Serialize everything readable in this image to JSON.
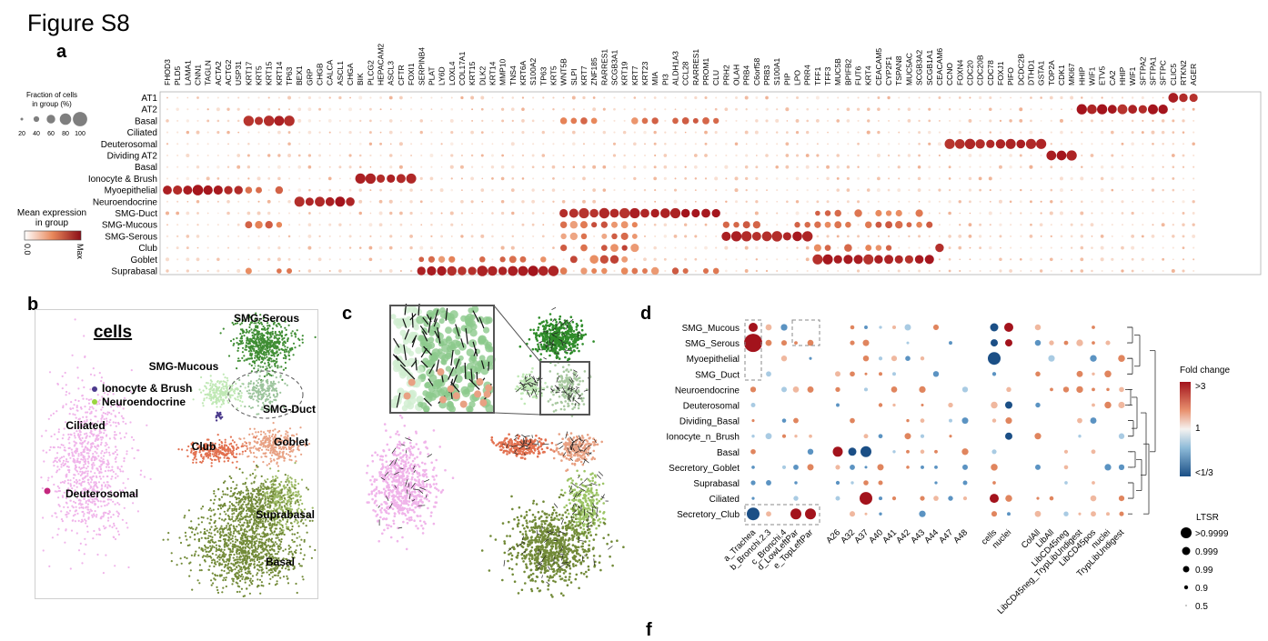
{
  "figure_title": "Figure S8",
  "panel_labels": {
    "a": "a",
    "b": "b",
    "c": "c",
    "d": "d",
    "f": "f"
  },
  "panel_a": {
    "genes": [
      "FHOD3",
      "PLD5",
      "LAMA1",
      "CNN1",
      "TAGLN",
      "ACTA2",
      "ACTG2",
      "USP31",
      "KRT17",
      "KRT5",
      "KRT15",
      "KRT14",
      "TP63",
      "BEX1",
      "GRP",
      "CHGB",
      "CALCA",
      "ASCL1",
      "CHGA",
      "BIK",
      "PLCG2",
      "HEPACAM2",
      "ASCL3",
      "CFTR",
      "FOXI1",
      "SERPINB4",
      "PLAT",
      "LY6D",
      "LOXL4",
      "COL17A1",
      "KRT15",
      "DLK2",
      "KRT14",
      "MMP10",
      "TNS4",
      "KRT6A",
      "S100A2",
      "TP63",
      "KRT5",
      "WNT5B",
      "SLPI",
      "KRT7",
      "ZNF185",
      "RARRES1",
      "SCGB3A1",
      "KRT19",
      "KRT7",
      "KRT23",
      "MIA",
      "PI3",
      "ALDH1A3",
      "CCL28",
      "RARRES1",
      "PROM1",
      "CLU",
      "PRH2",
      "OLAH",
      "PRB4",
      "C6orf58",
      "PRB3",
      "S100A1",
      "PIP",
      "LPO",
      "PRR4",
      "TFF1",
      "TFF3",
      "MUC5B",
      "BPIFB2",
      "FUT6",
      "KRT4",
      "CEACAM5",
      "CYP2F1",
      "TSPAN8",
      "MUC5AC",
      "SCGB3A2",
      "SCGB1A1",
      "CEACAM6",
      "CCNO",
      "FOXN4",
      "CDC20",
      "CDC20B",
      "CDC78",
      "FOXJ1",
      "PIFO",
      "DCDC2B",
      "DTHD1",
      "GSTA1",
      "TOP2A",
      "CDK1",
      "MKI67",
      "HHIP",
      "WIF1",
      "ETV5",
      "CA2",
      "HHIP",
      "WIF1",
      "SFTPA2",
      "SFTPA1",
      "SFTPC",
      "CLIC5",
      "RTKN2",
      "AGER"
    ],
    "celltypes": [
      "AT1",
      "AT2",
      "Basal",
      "Ciliated",
      "Deuterosomal",
      "Dividing AT2",
      "Basal",
      "Ionocyte & Brush",
      "Myoepithelial",
      "Neuroendocrine",
      "SMG-Duct",
      "SMG-Mucous",
      "SMG-Serous",
      "Club",
      "Goblet",
      "Suprabasal"
    ],
    "fraction_legend_title": [
      "Fraction of cells",
      "in group (%)"
    ],
    "fraction_ticks": [
      "20",
      "40",
      "60",
      "80",
      "100"
    ],
    "mean_expr_title": [
      "Mean expression",
      "in group"
    ],
    "colorbar_min": "0.0",
    "colorbar_max": "Max",
    "colors": {
      "low": "#fbeee6",
      "mid": "#e8875a",
      "high": "#a3131c"
    }
  },
  "panel_b": {
    "title": "cells",
    "clusters": [
      {
        "label": "SMG-Serous",
        "color": "#3f8d33"
      },
      {
        "label": "SMG-Mucous",
        "color": "#bfe8b4"
      },
      {
        "label": "Ionocyte & Brush",
        "color": "#4b3a8c"
      },
      {
        "label": "Neuroendocrine",
        "color": "#9ad640"
      },
      {
        "label": "SMG-Duct",
        "color": "#9cc49c"
      },
      {
        "label": "Ciliated",
        "color": "#f0b4ea"
      },
      {
        "label": "Club",
        "color": "#e2704f"
      },
      {
        "label": "Goblet",
        "color": "#e8a183"
      },
      {
        "label": "Deuterosomal",
        "color": "#c4277e"
      },
      {
        "label": "Suprabasal",
        "color": "#9cb965"
      },
      {
        "label": "Basal",
        "color": "#728a38"
      }
    ]
  },
  "panel_d": {
    "rows": [
      "SMG_Mucous",
      "SMG_Serous",
      "Myoepithelial",
      "SMG_Duct",
      "Neuroendocrine",
      "Deuterosomal",
      "Dividing_Basal",
      "Ionocyte_n_Brush",
      "Basal",
      "Secretory_Goblet",
      "Suprabasal",
      "Ciliated",
      "Secretory_Club"
    ],
    "columns": [
      "a_Trachea",
      "b_Bronchi.2.3",
      "c_Bronchi.4",
      "d_LowLeftPar",
      "e_TopLeftPar",
      "A26",
      "A32",
      "A37",
      "A40",
      "A41",
      "A42",
      "A43",
      "A44",
      "A47",
      "A48",
      "cells",
      "nuclei",
      "ColAll",
      "LibAll",
      "LibCD45neg",
      "LibCD45neg_TrypLibUndigest",
      "LibCD45pos",
      "nuclei",
      "TrypLibUndigest"
    ],
    "foldchange_title": "Fold change",
    "foldchange_ticks": [
      ">3",
      "1",
      "<1/3"
    ],
    "ltsr_title": "LTSR",
    "ltsr_ticks": [
      ">0.9999",
      "0.999",
      "0.99",
      "0.9",
      "0.5"
    ],
    "colors": {
      "pos": "#a3131c",
      "neg": "#1b4f86"
    }
  }
}
